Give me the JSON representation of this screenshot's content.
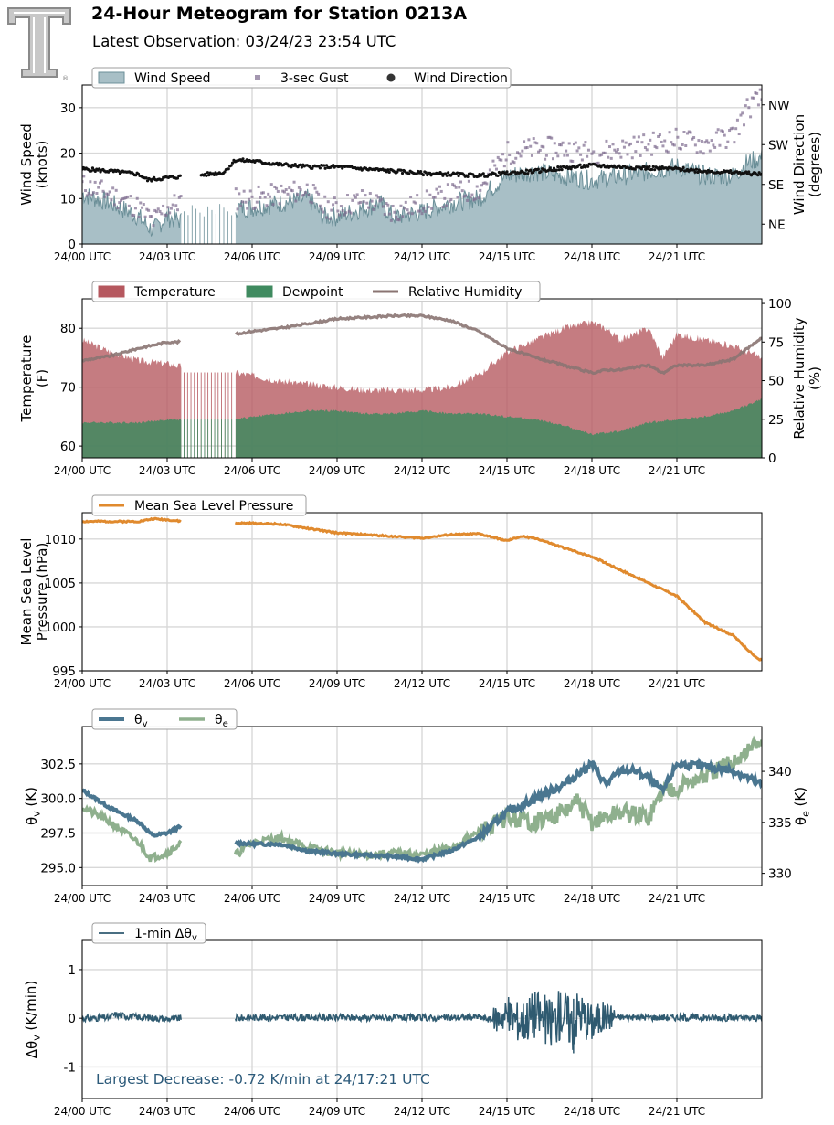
{
  "header": {
    "title": "24-Hour Meteogram for Station 0213A",
    "subtitle": "Latest Observation: 03/24/23 23:54 UTC"
  },
  "logo": {
    "icon": "double-t-logo-icon",
    "mark": "®"
  },
  "colors": {
    "wind_fill": "#a8bfc6",
    "wind_line": "#6b8f98",
    "gust": "#7d6b8f",
    "direction": "#111111",
    "temperature": "#b5575e",
    "dewpoint": "#3f8a5f",
    "rh": "#8a7472",
    "mslp": "#e08a2e",
    "theta_v": "#4a7690",
    "theta_e": "#8fb08e",
    "dtheta": "#2f5a70",
    "annotation": "#2c5a7a",
    "grid": "#d8d8d8"
  },
  "x_axis": {
    "unit": "hours since 24/00 UTC",
    "range": [
      0,
      24
    ],
    "tick_values": [
      0,
      3,
      6,
      9,
      12,
      15,
      18,
      21
    ],
    "tick_labels": [
      "24/00 UTC",
      "24/03 UTC",
      "24/06 UTC",
      "24/09 UTC",
      "24/12 UTC",
      "24/15 UTC",
      "24/18 UTC",
      "24/21 UTC"
    ]
  },
  "chart_data": [
    {
      "type": "area",
      "ylabel": "Wind Speed\n(knots)",
      "ylim": [
        0,
        35
      ],
      "yticks": [
        0,
        10,
        20,
        30
      ],
      "y2label": "Wind Direction\n(degrees)",
      "y2lim": [
        0,
        360
      ],
      "y2ticks": [
        {
          "value": 45,
          "label": "NE"
        },
        {
          "value": 135,
          "label": "SE"
        },
        {
          "value": 225,
          "label": "SW"
        },
        {
          "value": 315,
          "label": "NW"
        }
      ],
      "legend": [
        "Wind Speed",
        "3-sec Gust",
        "Wind Direction"
      ],
      "legend_placement": "top-left",
      "grid": true,
      "series": [
        {
          "name": "Wind Speed",
          "kind": "area",
          "x": [
            0,
            1,
            2,
            2.3,
            2.5,
            3,
            3.5,
            4,
            5,
            5.4,
            6,
            7,
            8,
            8.5,
            9,
            10,
            10.5,
            11,
            12,
            13,
            14,
            15,
            16,
            17,
            18,
            19,
            20,
            21,
            22,
            23,
            23.5,
            24
          ],
          "values": [
            11,
            9,
            6,
            4,
            3,
            6,
            5,
            6,
            7,
            8,
            8,
            9,
            10,
            6,
            6,
            8,
            9,
            6,
            7,
            9,
            10,
            15,
            16,
            15,
            14,
            15,
            16,
            17,
            15,
            15,
            18,
            19
          ]
        },
        {
          "name": "3-sec Gust",
          "kind": "scatter",
          "x": [
            0,
            1,
            2,
            2.5,
            3,
            4,
            5,
            5.4,
            6,
            7,
            8,
            8.5,
            9,
            10,
            11,
            12,
            13,
            14,
            15,
            16,
            17,
            18,
            19,
            20,
            21,
            22,
            23,
            23.5,
            24
          ],
          "values": [
            13,
            11,
            8,
            5,
            8,
            11,
            11,
            10,
            10,
            11,
            12,
            8,
            8,
            10,
            7,
            9,
            11,
            12,
            20,
            21,
            21,
            20,
            21,
            22,
            23,
            22,
            24,
            30,
            32
          ]
        },
        {
          "name": "Wind Direction",
          "kind": "scatter",
          "x": [
            0,
            1,
            2,
            2.3,
            3,
            4,
            5,
            5.4,
            6,
            7,
            8,
            9,
            10,
            11,
            12,
            13,
            14,
            15,
            16,
            17,
            18,
            19,
            20,
            21,
            22,
            23,
            24
          ],
          "values": [
            170,
            165,
            158,
            145,
            150,
            155,
            162,
            190,
            188,
            180,
            175,
            175,
            170,
            165,
            160,
            158,
            155,
            160,
            165,
            172,
            178,
            175,
            172,
            170,
            165,
            162,
            158
          ]
        }
      ],
      "gaps": [
        [
          3.5,
          5.4
        ]
      ]
    },
    {
      "type": "area",
      "ylabel": "Temperature\n(F)",
      "ylim": [
        58,
        85
      ],
      "yticks": [
        60,
        70,
        80
      ],
      "y2label": "Relative Humidity\n(%)",
      "y2lim": [
        0,
        103
      ],
      "y2ticks": [
        0,
        25,
        50,
        75,
        100
      ],
      "legend": [
        "Temperature",
        "Dewpoint",
        "Relative Humidity"
      ],
      "legend_placement": "top-left",
      "grid": true,
      "series": [
        {
          "name": "Temperature",
          "kind": "area",
          "x": [
            0,
            1,
            2,
            3,
            4,
            5,
            5.4,
            6,
            7,
            8,
            9,
            10,
            11,
            12,
            13,
            14,
            15,
            16,
            17,
            18,
            18.5,
            19,
            20,
            20.5,
            21,
            22,
            23,
            24
          ],
          "values": [
            78,
            76,
            74.5,
            74,
            73,
            72,
            72.5,
            72,
            71,
            70.5,
            70,
            69.5,
            69.5,
            69.5,
            70,
            72,
            76,
            78,
            80,
            81,
            80,
            78,
            80,
            75,
            79,
            78,
            77,
            75
          ]
        },
        {
          "name": "Dewpoint",
          "kind": "area",
          "x": [
            0,
            1,
            2,
            3,
            4,
            5,
            5.4,
            6,
            7,
            8,
            9,
            10,
            11,
            12,
            13,
            14,
            15,
            16,
            17,
            18,
            19,
            20,
            21,
            22,
            23,
            24
          ],
          "values": [
            64,
            64,
            64,
            64.5,
            64.5,
            64.5,
            64.5,
            65,
            65.5,
            66,
            66,
            65.5,
            65.5,
            66,
            65.5,
            65.5,
            65,
            64.5,
            63.5,
            62,
            62.5,
            64,
            64.5,
            65,
            66,
            68
          ]
        },
        {
          "name": "Relative Humidity",
          "kind": "line",
          "x": [
            0,
            1,
            2,
            3,
            3.5,
            4,
            5,
            5.4,
            6,
            7,
            8,
            9,
            10,
            11,
            12,
            13,
            14,
            15,
            16,
            17,
            18,
            18.5,
            19,
            20,
            20.5,
            21,
            22,
            23,
            24
          ],
          "values": [
            63,
            66,
            71,
            75,
            75,
            74,
            74,
            80,
            82,
            84,
            87,
            90,
            91,
            92,
            92,
            89,
            82,
            71,
            65,
            60,
            55,
            57,
            57,
            60,
            55,
            60,
            60,
            64,
            78
          ]
        }
      ],
      "gaps": [
        [
          3.5,
          5.4
        ]
      ]
    },
    {
      "type": "line",
      "ylabel": "Mean Sea Level\nPressure (hPa)",
      "ylim": [
        995,
        1013
      ],
      "yticks": [
        995,
        1000,
        1005,
        1010
      ],
      "legend": [
        "Mean Sea Level Pressure"
      ],
      "legend_placement": "top-left",
      "grid": true,
      "series": [
        {
          "name": "Mean Sea Level Pressure",
          "x": [
            0,
            1,
            2,
            2.5,
            3,
            3.5,
            4,
            5,
            5.4,
            6,
            7,
            8,
            9,
            10,
            11,
            12,
            13,
            14,
            15,
            15.5,
            16,
            17,
            18,
            19,
            20,
            21,
            22,
            23,
            23.8,
            24
          ],
          "values": [
            1012,
            1012,
            1012,
            1012.3,
            1012.2,
            1012,
            1012,
            1011.8,
            1011.8,
            1011.8,
            1011.7,
            1011.2,
            1010.7,
            1010.5,
            1010.3,
            1010.1,
            1010.5,
            1010.6,
            1009.8,
            1010.3,
            1010.1,
            1009,
            1008,
            1006.5,
            1005,
            1003.5,
            1000.5,
            999,
            996.5,
            996.2
          ]
        }
      ],
      "gaps": [
        [
          3.5,
          5.4
        ]
      ]
    },
    {
      "type": "line",
      "ylabel": "θ_v (K)",
      "ylim": [
        293.7,
        305.2
      ],
      "yticks": [
        295.0,
        297.5,
        300.0,
        302.5
      ],
      "y2label": "θ_e (K)",
      "y2lim": [
        328.8,
        344.4
      ],
      "y2ticks": [
        330,
        335,
        340
      ],
      "legend": [
        "θ_v",
        "θ_e"
      ],
      "legend_placement": "top-left",
      "grid": true,
      "series": [
        {
          "name": "θ_v",
          "axis": "left",
          "x": [
            0,
            1,
            2,
            2.5,
            3,
            3.5,
            4,
            5,
            5.4,
            6,
            7,
            8,
            9,
            10,
            11,
            12,
            13,
            14,
            15,
            15.5,
            16,
            17,
            18,
            18.5,
            19,
            19.5,
            20,
            20.5,
            21,
            22,
            23,
            24
          ],
          "values": [
            300.6,
            299.3,
            298.3,
            297.3,
            297.5,
            298,
            297.2,
            297,
            296.8,
            296.7,
            296.7,
            296.2,
            296,
            295.9,
            295.8,
            295.6,
            296.2,
            297.2,
            299,
            299.5,
            300,
            301,
            302.5,
            301,
            302,
            302,
            301.5,
            300.5,
            302.5,
            302.3,
            302,
            301
          ]
        },
        {
          "name": "θ_e",
          "axis": "right",
          "x": [
            0,
            1,
            2,
            2.4,
            3,
            3.5,
            4,
            5,
            5.4,
            6,
            7,
            8,
            9,
            10,
            11,
            12,
            13,
            14,
            15,
            16,
            17,
            17.5,
            18,
            19,
            20,
            20.5,
            21,
            22,
            23,
            24
          ],
          "values": [
            336.5,
            335,
            333,
            331.5,
            332,
            333,
            332.5,
            332.5,
            331.8,
            333,
            333.5,
            332.5,
            332,
            331.8,
            332,
            331.8,
            332.5,
            334,
            335.5,
            335,
            336,
            337,
            335,
            336,
            335.5,
            338,
            338.5,
            339.5,
            341,
            343
          ]
        }
      ],
      "gaps": [
        [
          3.5,
          5.4
        ]
      ]
    },
    {
      "type": "line",
      "ylabel": "Δθ_v (K/min)",
      "ylim": [
        -1.65,
        1.6
      ],
      "yticks": [
        -1,
        0,
        1
      ],
      "legend": [
        "1-min Δθ_v"
      ],
      "legend_placement": "top-left",
      "grid": true,
      "annotation": "Largest Decrease: -0.72 K/min at 24/17:21 UTC",
      "series": [
        {
          "name": "1-min Δθ_v",
          "x": [
            0,
            1,
            1.1,
            2,
            3,
            3.5,
            5.4,
            6,
            8,
            10,
            12,
            13,
            14,
            14.5,
            15,
            15.5,
            16,
            16.5,
            17,
            17.35,
            17.5,
            18,
            18.5,
            19,
            20,
            22,
            24
          ],
          "values": [
            0,
            0.05,
            0.3,
            0.08,
            -0.05,
            0,
            0,
            0.06,
            0.07,
            0.05,
            0.03,
            0.04,
            0.12,
            -0.15,
            0.35,
            -0.3,
            0.45,
            -0.45,
            0.55,
            -0.72,
            0.6,
            -0.35,
            0.2,
            0.1,
            0.08,
            0.06,
            0
          ]
        }
      ],
      "gaps": [
        [
          3.5,
          5.4
        ]
      ]
    }
  ]
}
